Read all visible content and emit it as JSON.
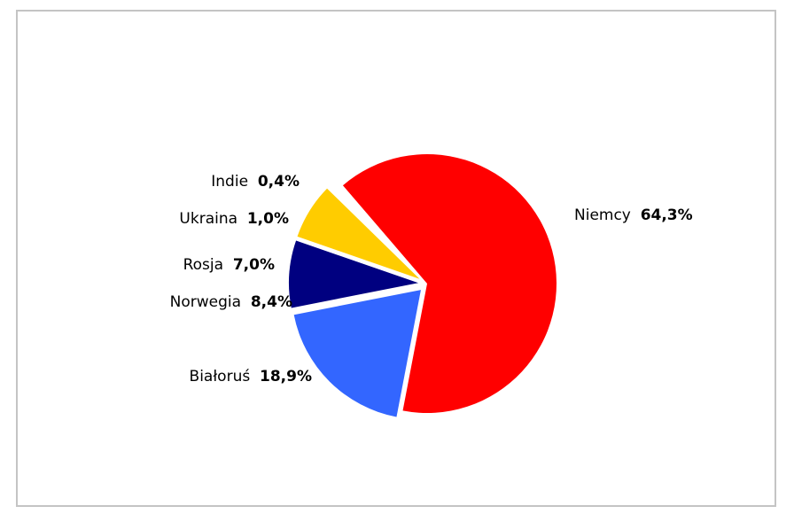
{
  "chart_data": {
    "type": "pie",
    "title": "",
    "slices": [
      {
        "label": "Niemcy",
        "value_text": "64,3%",
        "value": 64.3,
        "color": "#ff0000"
      },
      {
        "label": "Białoruś",
        "value_text": "18,9%",
        "value": 18.9,
        "color": "#3366ff"
      },
      {
        "label": "Norwegia",
        "value_text": "8,4%",
        "value": 8.4,
        "color": "#000080"
      },
      {
        "label": "Rosja",
        "value_text": "7,0%",
        "value": 7.0,
        "color": "#ffcc00"
      },
      {
        "label": "Ukraina",
        "value_text": "1,0%",
        "value": 1.0,
        "color": "#ffffff"
      },
      {
        "label": "Indie",
        "value_text": "0,4%",
        "value": 0.4,
        "color": "#ffffff"
      }
    ]
  }
}
